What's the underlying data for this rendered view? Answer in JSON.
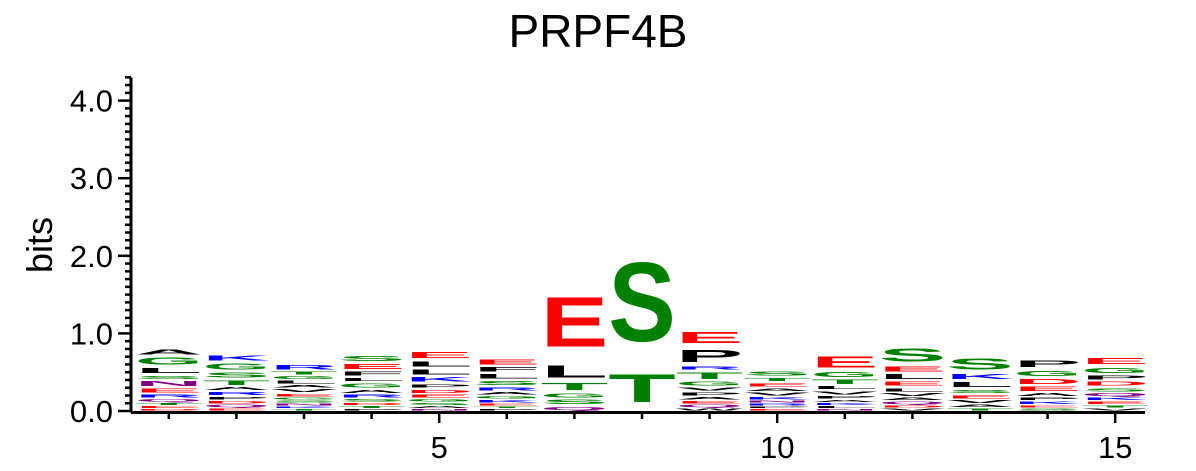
{
  "chart_data": {
    "type": "sequence-logo",
    "title": "PRPF4B",
    "ylabel": "bits",
    "xlabel": "",
    "ylim": [
      0,
      4.3
    ],
    "yticks": [
      "0.0",
      "1.0",
      "2.0",
      "3.0",
      "4.0"
    ],
    "xticks": [
      "5",
      "10",
      "15"
    ],
    "colors": {
      "A": "#000000",
      "P": "#000000",
      "L": "#000000",
      "V": "#000000",
      "I": "#000000",
      "M": "#000000",
      "F": "#000000",
      "W": "#000000",
      "S": "#008000",
      "T": "#008000",
      "G": "#008000",
      "Y": "#008000",
      "C": "#008000",
      "E": "#ff0000",
      "D": "#ff0000",
      "K": "#0000ff",
      "R": "#0000ff",
      "H": "#0000ff",
      "N": "#800080",
      "Q": "#800080"
    },
    "positions": [
      {
        "pos": 1,
        "stack": [
          [
            "D",
            0.03
          ],
          [
            "E",
            0.04
          ],
          [
            "T",
            0.04
          ],
          [
            "Q",
            0.05
          ],
          [
            "R",
            0.06
          ],
          [
            "E",
            0.08
          ],
          [
            "N",
            0.1
          ],
          [
            "S",
            0.07
          ],
          [
            "L",
            0.1
          ],
          [
            "G",
            0.14
          ],
          [
            "A",
            0.1
          ]
        ]
      },
      {
        "pos": 2,
        "stack": [
          [
            "E",
            0.04
          ],
          [
            "Q",
            0.05
          ],
          [
            "D",
            0.05
          ],
          [
            "P",
            0.05
          ],
          [
            "R",
            0.07
          ],
          [
            "A",
            0.06
          ],
          [
            "T",
            0.09
          ],
          [
            "S",
            0.1
          ],
          [
            "G",
            0.12
          ],
          [
            "K",
            0.1
          ]
        ]
      },
      {
        "pos": 3,
        "stack": [
          [
            "T",
            0.03
          ],
          [
            "K",
            0.03
          ],
          [
            "N",
            0.04
          ],
          [
            "S",
            0.04
          ],
          [
            "G",
            0.04
          ],
          [
            "E",
            0.05
          ],
          [
            "V",
            0.06
          ],
          [
            "A",
            0.05
          ],
          [
            "L",
            0.06
          ],
          [
            "G",
            0.06
          ],
          [
            "T",
            0.06
          ],
          [
            "R",
            0.09
          ]
        ]
      },
      {
        "pos": 4,
        "stack": [
          [
            "P",
            0.03
          ],
          [
            "T",
            0.04
          ],
          [
            "D",
            0.04
          ],
          [
            "S",
            0.05
          ],
          [
            "R",
            0.06
          ],
          [
            "A",
            0.07
          ],
          [
            "G",
            0.08
          ],
          [
            "L",
            0.07
          ],
          [
            "F",
            0.08
          ],
          [
            "E",
            0.1
          ],
          [
            "S",
            0.11
          ]
        ]
      },
      {
        "pos": 5,
        "stack": [
          [
            "N",
            0.03
          ],
          [
            "A",
            0.04
          ],
          [
            "S",
            0.04
          ],
          [
            "G",
            0.05
          ],
          [
            "E",
            0.06
          ],
          [
            "D",
            0.07
          ],
          [
            "P",
            0.07
          ],
          [
            "K",
            0.09
          ],
          [
            "L",
            0.1
          ],
          [
            "L",
            0.11
          ],
          [
            "E",
            0.12
          ]
        ]
      },
      {
        "pos": 6,
        "stack": [
          [
            "P",
            0.03
          ],
          [
            "T",
            0.03
          ],
          [
            "E",
            0.04
          ],
          [
            "K",
            0.05
          ],
          [
            "G",
            0.05
          ],
          [
            "A",
            0.05
          ],
          [
            "R",
            0.07
          ],
          [
            "S",
            0.08
          ],
          [
            "L",
            0.09
          ],
          [
            "F",
            0.09
          ],
          [
            "E",
            0.1
          ]
        ]
      },
      {
        "pos": 7,
        "stack": [
          [
            "Q",
            0.07
          ],
          [
            "S",
            0.09
          ],
          [
            "G",
            0.08
          ],
          [
            "T",
            0.14
          ],
          [
            "L",
            0.25
          ],
          [
            "E",
            1.03
          ]
        ]
      },
      {
        "pos": 8,
        "stack": [
          [
            "T",
            0.58
          ],
          [
            "S",
            1.64
          ]
        ]
      },
      {
        "pos": 9,
        "stack": [
          [
            "W",
            0.04
          ],
          [
            "Q",
            0.05
          ],
          [
            "E",
            0.05
          ],
          [
            "A",
            0.05
          ],
          [
            "P",
            0.06
          ],
          [
            "V",
            0.06
          ],
          [
            "G",
            0.08
          ],
          [
            "T",
            0.13
          ],
          [
            "R",
            0.06
          ],
          [
            "P",
            0.25
          ],
          [
            "E",
            0.22
          ]
        ]
      },
      {
        "pos": 10,
        "stack": [
          [
            "E",
            0.03
          ],
          [
            "P",
            0.03
          ],
          [
            "R",
            0.04
          ],
          [
            "N",
            0.04
          ],
          [
            "K",
            0.05
          ],
          [
            "V",
            0.06
          ],
          [
            "A",
            0.05
          ],
          [
            "E",
            0.07
          ],
          [
            "T",
            0.07
          ],
          [
            "S",
            0.08
          ]
        ]
      },
      {
        "pos": 11,
        "stack": [
          [
            "N",
            0.03
          ],
          [
            "L",
            0.04
          ],
          [
            "K",
            0.04
          ],
          [
            "A",
            0.04
          ],
          [
            "P",
            0.05
          ],
          [
            "V",
            0.07
          ],
          [
            "L",
            0.06
          ],
          [
            "T",
            0.09
          ],
          [
            "G",
            0.1
          ],
          [
            "E",
            0.22
          ]
        ]
      },
      {
        "pos": 12,
        "stack": [
          [
            "V",
            0.04
          ],
          [
            "D",
            0.04
          ],
          [
            "Q",
            0.05
          ],
          [
            "A",
            0.05
          ],
          [
            "V",
            0.06
          ],
          [
            "L",
            0.07
          ],
          [
            "E",
            0.08
          ],
          [
            "L",
            0.1
          ],
          [
            "E",
            0.1
          ],
          [
            "S",
            0.26
          ]
        ]
      },
      {
        "pos": 13,
        "stack": [
          [
            "T",
            0.04
          ],
          [
            "A",
            0.05
          ],
          [
            "V",
            0.06
          ],
          [
            "E",
            0.07
          ],
          [
            "S",
            0.07
          ],
          [
            "L",
            0.1
          ],
          [
            "K",
            0.1
          ],
          [
            "S",
            0.22
          ]
        ]
      },
      {
        "pos": 14,
        "stack": [
          [
            "S",
            0.04
          ],
          [
            "E",
            0.04
          ],
          [
            "K",
            0.05
          ],
          [
            "P",
            0.05
          ],
          [
            "A",
            0.06
          ],
          [
            "E",
            0.09
          ],
          [
            "D",
            0.1
          ],
          [
            "G",
            0.11
          ],
          [
            "P",
            0.13
          ]
        ]
      },
      {
        "pos": 15,
        "stack": [
          [
            "V",
            0.04
          ],
          [
            "T",
            0.04
          ],
          [
            "E",
            0.05
          ],
          [
            "K",
            0.05
          ],
          [
            "Q",
            0.06
          ],
          [
            "S",
            0.07
          ],
          [
            "D",
            0.08
          ],
          [
            "P",
            0.08
          ],
          [
            "G",
            0.11
          ],
          [
            "E",
            0.12
          ]
        ]
      }
    ]
  }
}
